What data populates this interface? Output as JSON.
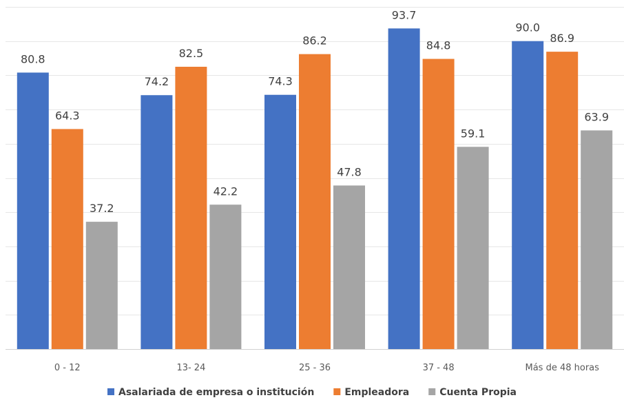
{
  "chart_data": {
    "type": "bar",
    "categories": [
      "0 - 12",
      "13- 24",
      "25 - 36",
      "37 - 48",
      "Más de 48 horas"
    ],
    "series": [
      {
        "name": "Asalariada de empresa o institución",
        "color": "#4472c4",
        "values": [
          80.8,
          74.2,
          74.3,
          93.7,
          90.0
        ],
        "labels": [
          "80.8",
          "74.2",
          "74.3",
          "93.7",
          "90.0"
        ]
      },
      {
        "name": "Empleadora",
        "color": "#ed7d31",
        "values": [
          64.3,
          82.5,
          86.2,
          84.8,
          86.9
        ],
        "labels": [
          "64.3",
          "82.5",
          "86.2",
          "84.8",
          "86.9"
        ]
      },
      {
        "name": "Cuenta Propia",
        "color": "#a5a5a5",
        "values": [
          37.2,
          42.2,
          47.8,
          59.1,
          63.9
        ],
        "labels": [
          "37.2",
          "42.2",
          "47.8",
          "59.1",
          "63.9"
        ]
      }
    ],
    "ylim": [
      0,
      100
    ],
    "grid": true,
    "legend_position": "bottom",
    "title": "",
    "xlabel": "",
    "ylabel": ""
  }
}
